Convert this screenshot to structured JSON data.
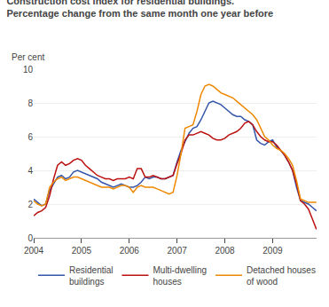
{
  "chart_data": {
    "type": "line",
    "title": "Construction cost index for residential buildings.",
    "subtitle": "Percentage change from the same month one year before",
    "y_label": "Per cent",
    "x": [
      2004.0,
      2004.0833,
      2004.1667,
      2004.25,
      2004.3334,
      2004.4167,
      2004.5,
      2004.5834,
      2004.6667,
      2004.75,
      2004.8334,
      2004.9167,
      2005.0001,
      2005.0834,
      2005.1667,
      2005.2501,
      2005.3334,
      2005.4167,
      2005.5001,
      2005.5834,
      2005.6668,
      2005.7501,
      2005.8334,
      2005.9168,
      2006.0001,
      2006.0835,
      2006.1668,
      2006.2501,
      2006.3335,
      2006.4168,
      2006.5001,
      2006.5835,
      2006.6668,
      2006.7502,
      2006.8335,
      2006.9168,
      2007.0002,
      2007.0835,
      2007.1668,
      2007.2502,
      2007.3335,
      2007.4169,
      2007.5002,
      2007.5835,
      2007.6669,
      2007.7502,
      2007.8335,
      2007.9169,
      2008.0002,
      2008.0836,
      2008.1669,
      2008.2502,
      2008.3336,
      2008.4169,
      2008.5003,
      2008.5836,
      2008.6669,
      2008.7503,
      2008.8336,
      2008.9169,
      2009.0003,
      2009.0836,
      2009.167,
      2009.2503,
      2009.3336,
      2009.417,
      2009.5003,
      2009.5836,
      2009.667,
      2009.7503,
      2009.8337,
      2009.917
    ],
    "series": [
      {
        "name": "Residential\nbuildings",
        "color": "#3355aa",
        "values": [
          2.3,
          2.1,
          1.9,
          2.0,
          2.8,
          3.2,
          3.6,
          3.7,
          3.5,
          3.6,
          3.9,
          4.0,
          3.9,
          3.8,
          3.7,
          3.6,
          3.5,
          3.3,
          3.2,
          3.1,
          3.0,
          3.1,
          3.2,
          3.1,
          3.0,
          3.0,
          3.1,
          3.3,
          3.6,
          3.5,
          3.6,
          3.6,
          3.5,
          3.5,
          3.6,
          3.7,
          4.5,
          5.2,
          5.7,
          6.2,
          6.5,
          6.6,
          7.0,
          7.5,
          8.0,
          8.1,
          8.0,
          7.9,
          7.7,
          7.5,
          7.3,
          7.2,
          7.2,
          7.0,
          6.9,
          6.7,
          5.8,
          5.6,
          5.5,
          5.7,
          5.8,
          5.4,
          5.2,
          4.9,
          4.5,
          4.0,
          3.0,
          2.2,
          2.1,
          2.0,
          1.8,
          1.6
        ]
      },
      {
        "name": "Multi-dwelling\nhouses",
        "color": "#bb1111",
        "values": [
          1.3,
          1.5,
          1.6,
          1.8,
          2.5,
          3.5,
          4.3,
          4.5,
          4.3,
          4.4,
          4.6,
          4.7,
          4.6,
          4.3,
          4.1,
          3.9,
          3.7,
          3.6,
          3.5,
          3.5,
          3.4,
          3.5,
          3.5,
          3.5,
          3.6,
          3.5,
          4.1,
          4.1,
          3.6,
          3.6,
          3.7,
          3.6,
          3.5,
          3.5,
          3.6,
          3.7,
          4.4,
          5.0,
          5.8,
          6.1,
          6.1,
          6.2,
          6.3,
          6.2,
          6.1,
          5.9,
          5.8,
          5.8,
          5.9,
          6.1,
          6.2,
          6.3,
          6.5,
          6.8,
          6.9,
          6.7,
          6.3,
          6.0,
          5.8,
          5.7,
          5.7,
          5.5,
          5.2,
          4.9,
          4.5,
          4.0,
          3.2,
          2.2,
          2.0,
          1.7,
          1.1,
          0.5
        ]
      },
      {
        "name": "Detached houses\nof wood",
        "color": "#ee8800",
        "values": [
          2.2,
          2.0,
          1.9,
          2.0,
          3.0,
          3.3,
          3.5,
          3.6,
          3.4,
          3.5,
          3.6,
          3.6,
          3.5,
          3.4,
          3.3,
          3.2,
          3.1,
          3.0,
          3.0,
          3.0,
          2.9,
          3.0,
          3.1,
          3.1,
          3.0,
          2.7,
          3.0,
          3.1,
          3.0,
          3.0,
          3.0,
          2.9,
          2.8,
          2.7,
          2.6,
          2.7,
          3.7,
          5.0,
          6.5,
          6.6,
          6.7,
          7.5,
          8.5,
          9.0,
          9.1,
          9.0,
          8.8,
          8.6,
          8.5,
          8.4,
          8.3,
          8.1,
          7.9,
          7.7,
          7.5,
          7.3,
          7.0,
          6.5,
          6.0,
          5.8,
          5.5,
          5.3,
          5.2,
          5.0,
          4.7,
          4.3,
          3.4,
          2.3,
          2.2,
          2.1,
          2.1,
          2.1
        ]
      }
    ],
    "xlim": [
      2004.0,
      2009.92
    ],
    "xticks": [
      2004,
      2005,
      2006,
      2007,
      2008,
      2009
    ],
    "ylim": [
      0,
      10
    ],
    "yticks": [
      0,
      2,
      4,
      6,
      8,
      10
    ],
    "grid": true,
    "legend": "bottom"
  }
}
